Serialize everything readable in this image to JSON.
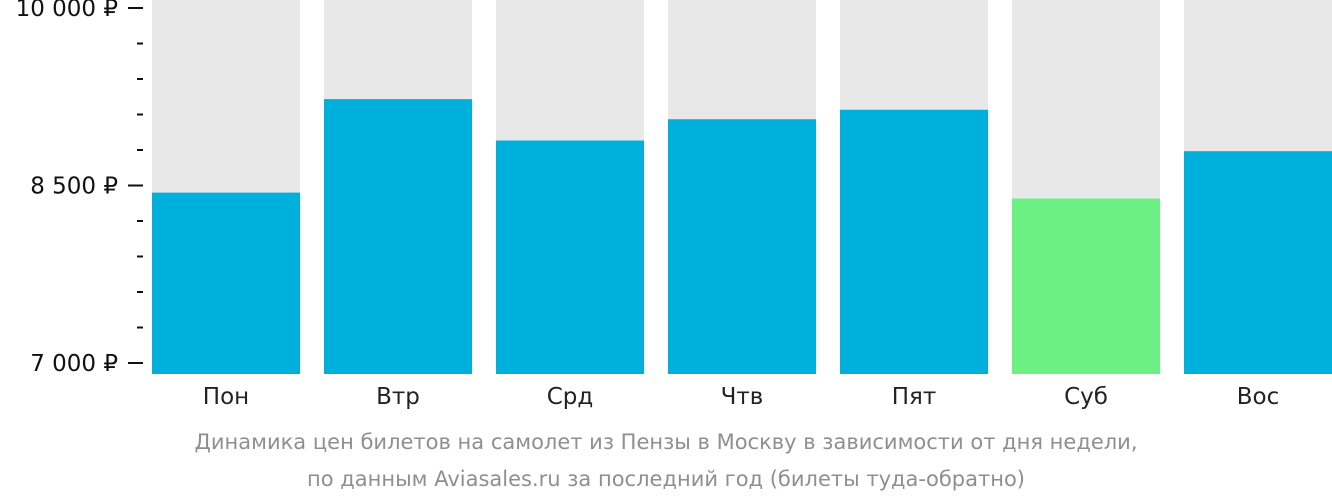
{
  "chart_data": {
    "type": "bar",
    "categories": [
      "Пон",
      "Втр",
      "Срд",
      "Чтв",
      "Пят",
      "Суб",
      "Вос"
    ],
    "values": [
      8440,
      9230,
      8880,
      9060,
      9140,
      8390,
      8790
    ],
    "ylim": [
      7000,
      10000
    ],
    "yticks": [
      {
        "value": 10000,
        "label": "10 000 ₽"
      },
      {
        "value": 8500,
        "label": "8 500 ₽"
      },
      {
        "value": 7000,
        "label": "7 000 ₽"
      }
    ],
    "minor_tick_step": 300,
    "highlight_index": 5,
    "colors": {
      "bar": "#00b0dc",
      "highlight": "#6df083",
      "background_column": "#e8e8e8",
      "axis": "#111111"
    },
    "legend": "none",
    "grid": false
  },
  "caption": {
    "line1": "Динамика цен билетов на самолет из Пензы в Москву в зависимости от дня недели,",
    "line2": "по данным Aviasales.ru за последний год (билеты туда-обратно)"
  }
}
